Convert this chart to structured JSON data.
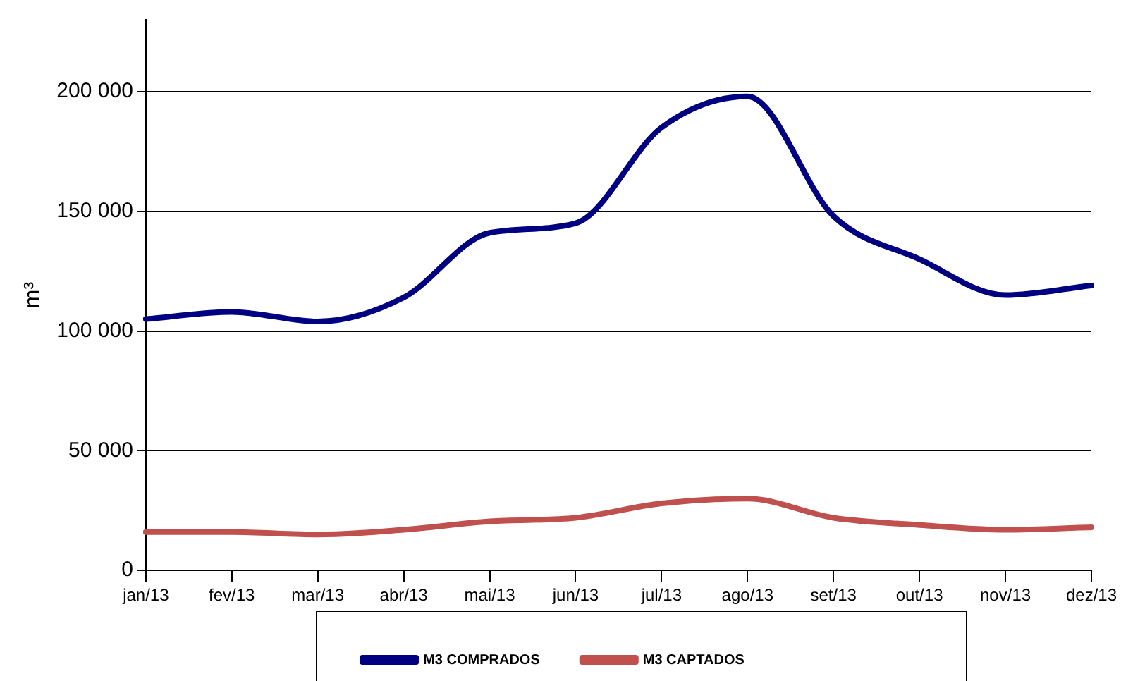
{
  "chart_data": {
    "type": "line",
    "ylabel": "m³",
    "categories": [
      "jan/13",
      "fev/13",
      "mar/13",
      "abr/13",
      "mai/13",
      "jun/13",
      "jul/13",
      "ago/13",
      "set/13",
      "out/13",
      "nov/13",
      "dez/13"
    ],
    "series": [
      {
        "name": "M3 COMPRADOS",
        "color": "#000080",
        "values": [
          105000,
          108000,
          104000,
          114000,
          141000,
          145000,
          185000,
          198000,
          148000,
          130000,
          115000,
          119000
        ]
      },
      {
        "name": "M3 CAPTADOS",
        "color": "#c0504d",
        "values": [
          16000,
          16000,
          15000,
          17000,
          20500,
          22000,
          28000,
          30000,
          22000,
          19000,
          17000,
          18000
        ]
      }
    ],
    "ylim": [
      0,
      230000
    ],
    "yticks": [
      0,
      {
        "value": 50000,
        "label": "50 000"
      },
      {
        "value": 100000,
        "label": "100 000"
      },
      {
        "value": 150000,
        "label": "150 000"
      },
      {
        "value": 200000,
        "label": "200 000"
      }
    ],
    "grid": "y",
    "legend": "bottom",
    "marker": "none",
    "line_style": "solid"
  }
}
